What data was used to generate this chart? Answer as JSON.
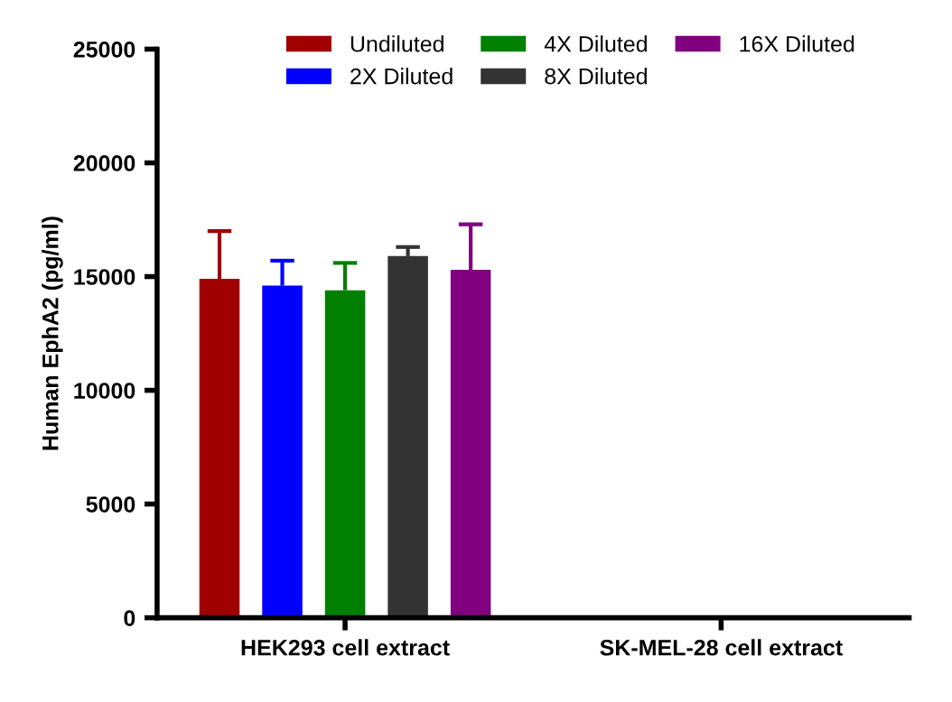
{
  "chart_data": {
    "type": "bar",
    "ylabel": "Human EphA2 (pg/ml)",
    "categories": [
      "HEK293 cell extract",
      "SK-MEL-28 cell extract"
    ],
    "series": [
      {
        "name": "Undiluted",
        "color": "#a00000",
        "values": [
          14900,
          0
        ],
        "errors": [
          [
            14900,
            17000
          ],
          null
        ]
      },
      {
        "name": "2X Diluted",
        "color": "#0000ff",
        "values": [
          14600,
          0
        ],
        "errors": [
          [
            14600,
            15700
          ],
          null
        ]
      },
      {
        "name": "4X Diluted",
        "color": "#008000",
        "values": [
          14400,
          0
        ],
        "errors": [
          [
            14400,
            15600
          ],
          null
        ]
      },
      {
        "name": "8X Diluted",
        "color": "#333333",
        "values": [
          15900,
          0
        ],
        "errors": [
          [
            15900,
            16300
          ],
          null
        ]
      },
      {
        "name": "16X Diluted",
        "color": "#800080",
        "values": [
          15300,
          0
        ],
        "errors": [
          [
            15300,
            17300
          ],
          null
        ]
      }
    ],
    "ylim": [
      0,
      25000
    ],
    "yticks": [
      0,
      5000,
      10000,
      15000,
      20000,
      25000
    ],
    "grid": false,
    "legend": "top"
  }
}
